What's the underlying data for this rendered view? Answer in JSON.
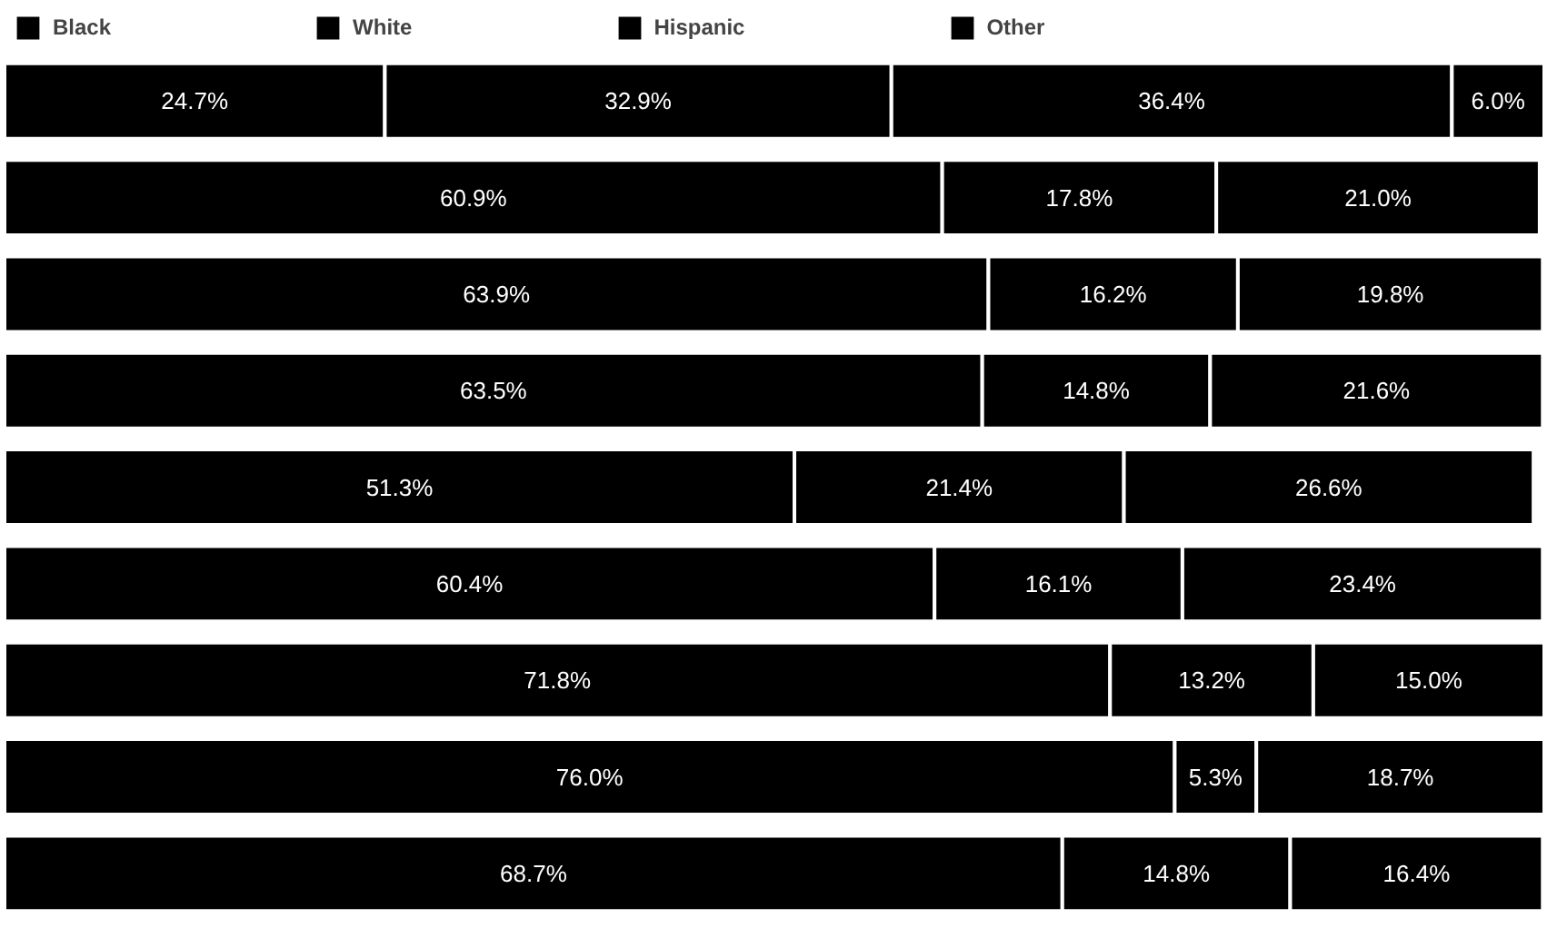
{
  "chart_data": {
    "type": "bar",
    "orientation": "horizontal",
    "stacked": true,
    "categories": [
      null,
      null,
      null,
      null,
      null,
      null,
      null,
      null,
      null
    ],
    "xlim": [
      0,
      100
    ],
    "tick_labels": false,
    "grid": false,
    "legend": "top",
    "series": [
      {
        "name": "Black",
        "color": "#000000",
        "values": [
          24.7,
          null,
          null,
          null,
          null,
          null,
          null,
          null,
          null
        ],
        "value_labels": [
          "24.7%",
          null,
          null,
          null,
          null,
          null,
          null,
          null,
          null
        ]
      },
      {
        "name": "White",
        "color": "#000000",
        "values": [
          32.9,
          60.9,
          63.9,
          63.5,
          51.3,
          60.4,
          71.8,
          76.0,
          68.7
        ],
        "value_labels": [
          "32.9%",
          "60.9%",
          "63.9%",
          "63.5%",
          "51.3%",
          "60.4%",
          "71.8%",
          "76.0%",
          "68.7%"
        ]
      },
      {
        "name": "Hispanic",
        "color": "#000000",
        "values": [
          36.4,
          17.8,
          16.2,
          14.8,
          21.4,
          16.1,
          13.2,
          5.3,
          14.8
        ],
        "value_labels": [
          "36.4%",
          "17.8%",
          "16.2%",
          "14.8%",
          "21.4%",
          "16.1%",
          "13.2%",
          "5.3%",
          "14.8%"
        ]
      },
      {
        "name": "Other",
        "color": "#000000",
        "values": [
          6.0,
          21.0,
          19.8,
          21.6,
          26.6,
          23.4,
          15.0,
          18.7,
          16.4
        ],
        "value_labels": [
          "6.0%",
          "21.0%",
          "19.8%",
          "21.6%",
          "26.6%",
          "23.4%",
          "15.0%",
          "18.7%",
          "16.4%"
        ]
      }
    ]
  }
}
